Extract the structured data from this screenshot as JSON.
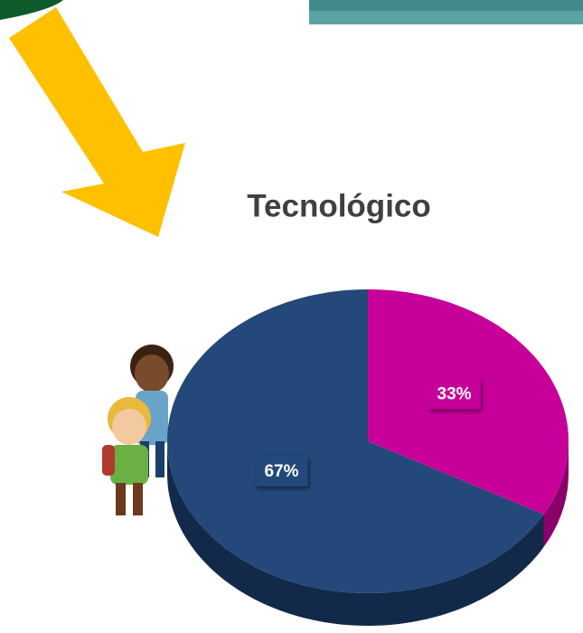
{
  "chart_data": {
    "type": "pie",
    "title": "Tecnológico",
    "categories": [
      null,
      null
    ],
    "values": [
      33,
      67
    ],
    "value_labels": [
      "33%",
      "67%"
    ],
    "colors": [
      "#c8009a",
      "#234879"
    ],
    "side_colors": [
      "#8a006a",
      "#13294a"
    ]
  }
}
